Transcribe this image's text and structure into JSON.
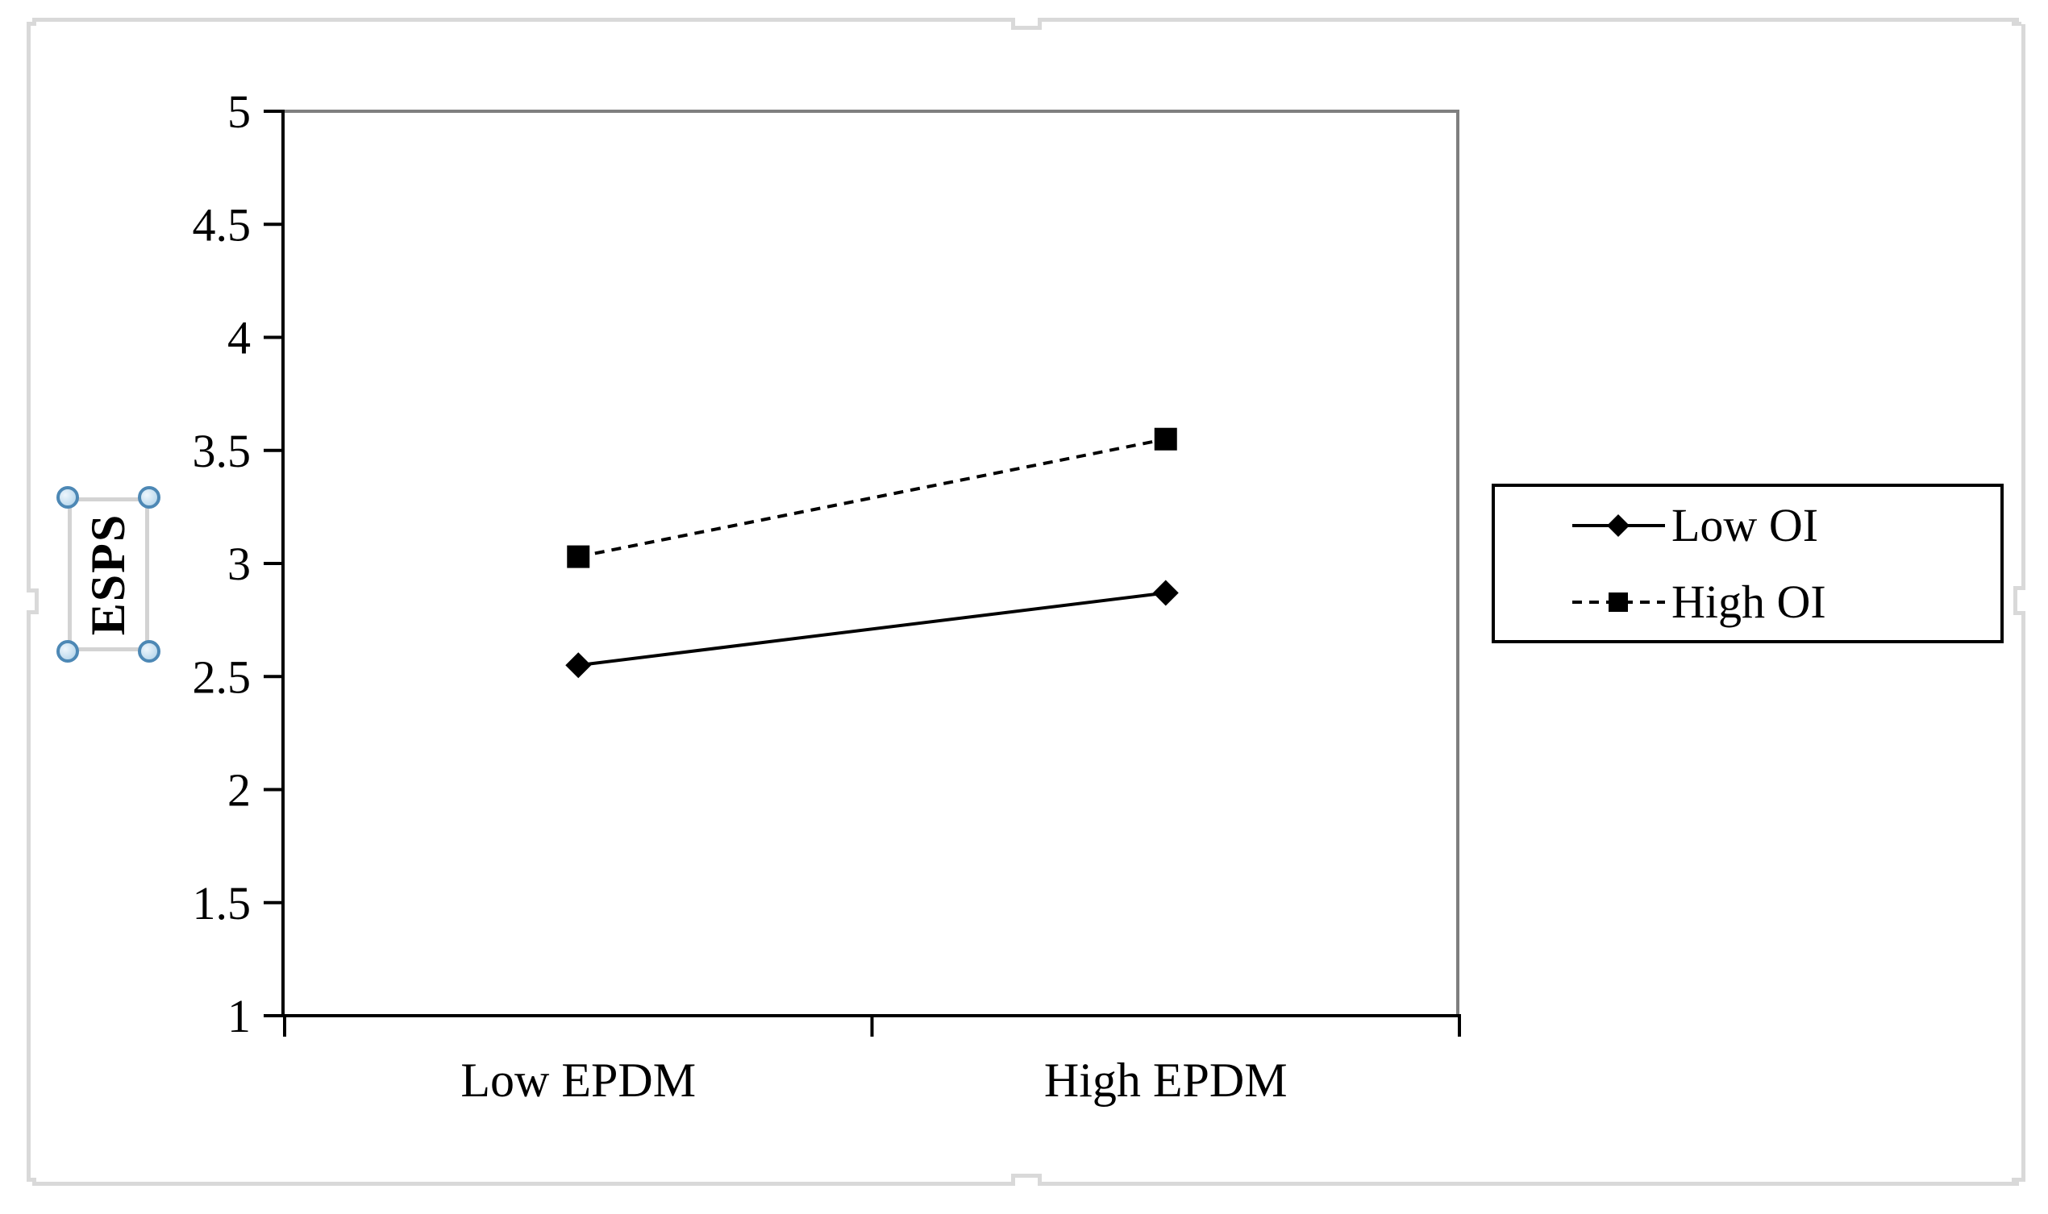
{
  "chart_data": {
    "type": "line",
    "title": "",
    "categories": [
      "Low EPDM",
      "High EPDM"
    ],
    "series": [
      {
        "name": "Low OI",
        "values": [
          2.55,
          2.87
        ],
        "line": "solid",
        "marker": "diamond",
        "color": "#000000"
      },
      {
        "name": "High OI",
        "values": [
          3.03,
          3.55
        ],
        "line": "dashed",
        "marker": "square",
        "color": "#000000"
      }
    ],
    "xlabel": "",
    "ylabel": "ESPS",
    "ylim": [
      1,
      5
    ],
    "y_ticks": [
      5,
      4.5,
      4,
      3.5,
      3,
      2.5,
      2,
      1.5,
      1
    ],
    "y_tick_labels": [
      "5",
      "4.5",
      "4",
      "3.5",
      "3",
      "2.5",
      "2",
      "1.5",
      "1"
    ],
    "grid": false,
    "legend_position": "right"
  },
  "axis_title_box": {
    "text": "ESPS",
    "selected": true
  },
  "colors": {
    "series_stroke": "#000000",
    "axis_line": "#000000",
    "plot_border": "#7f7f7f",
    "canvas_selection_border": "#d9d9d9",
    "title_frame": "#d3d3d3",
    "handle_ring": "#4d88b5",
    "handle_fill": "#bcd9ed"
  }
}
